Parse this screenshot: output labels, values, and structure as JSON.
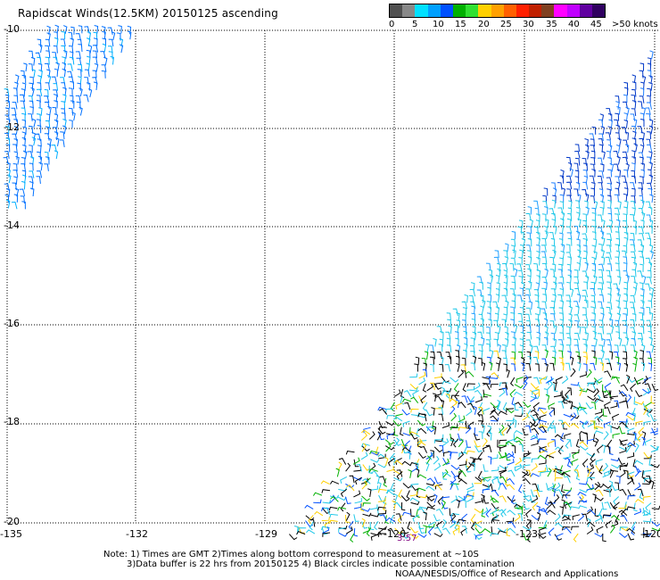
{
  "title": "Rapidscat Winds(12.5KM) 20150125 ascending",
  "legend": {
    "colors": [
      "#505050",
      "#888888",
      "#00e0ff",
      "#00a0ff",
      "#0050ff",
      "#00b000",
      "#30e030",
      "#ffd000",
      "#ffa000",
      "#ff6000",
      "#ff2000",
      "#c02000",
      "#804020",
      "#ff00ff",
      "#c000ff",
      "#6000a0",
      "#300060"
    ],
    "labels": [
      "0",
      "5",
      "10",
      "15",
      "20",
      "25",
      "30",
      "35",
      "40",
      "45",
      ">50 knots"
    ]
  },
  "map": {
    "lat_labels": [
      "-10",
      "-12",
      "-14",
      "-16",
      "-18",
      "-20"
    ],
    "lon_labels": [
      "-135",
      "-132",
      "-129",
      "-126",
      "-123",
      "-120"
    ],
    "grid_color": "#000000"
  },
  "time_label": "3:57",
  "notes": {
    "line1": "Note: 1) Times are GMT 2)Times along bottom correspond to measurement at ~10S",
    "line2": "3)Data buffer is 22 hrs from 20150125 4) Black circles indicate possible contamination",
    "line3": "NOAA/NESDIS/Office of Research and Applications"
  }
}
